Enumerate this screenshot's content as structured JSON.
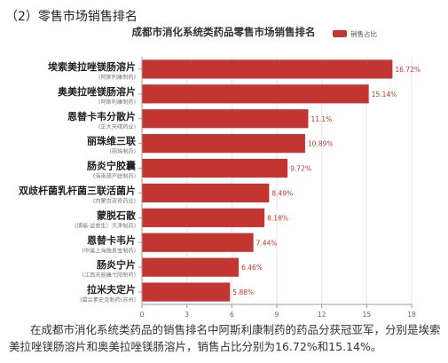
{
  "section": {
    "heading": "（2）零售市场销售排名"
  },
  "caption": "在成都市消化系统类药品的销售排名中阿斯利康制药的药品分获冠亚军，分别是埃索美拉唑镁肠溶片和奥美拉唑镁肠溶片，销售占比分别为16.72%和15.14%。",
  "colors": {
    "bar": "#c23531",
    "grid": "#e6e6e6",
    "axis": "#999999"
  },
  "chart_data": {
    "type": "bar",
    "orientation": "horizontal",
    "title": "成都市消化系统类药品零售市场销售排名",
    "legend": {
      "label": "销售占比",
      "position": "top-right"
    },
    "xlim": [
      0,
      18
    ],
    "xticks": [
      0,
      3,
      6,
      9,
      12,
      15,
      18
    ],
    "grid": true,
    "categories": [
      {
        "name": "埃索美拉唑镁肠溶片",
        "maker": "(阿斯利康制药)"
      },
      {
        "name": "奥美拉唑镁肠溶片",
        "maker": "(阿斯利康制药)"
      },
      {
        "name": "恩替卡韦分散片",
        "maker": "(正大天晴药业)"
      },
      {
        "name": "丽珠维三联",
        "maker": "(丽珠制药)"
      },
      {
        "name": "肠炎宁胶囊",
        "maker": "(海南葫芦娃制药)"
      },
      {
        "name": "双歧杆菌乳杆菌三联活菌片",
        "maker": "(内蒙古双奇药业)"
      },
      {
        "name": "蒙脱石散",
        "maker": "(博福-益普生）天津制药)"
      },
      {
        "name": "恩替卡韦片",
        "maker": "(中美上海施贵宝制药)"
      },
      {
        "name": "肠炎宁片",
        "maker": "(江西天施康弋阳制药)"
      },
      {
        "name": "拉米夫定片",
        "maker": "(葛兰素史克制药(苏州)"
      }
    ],
    "values": [
      16.72,
      15.14,
      11.1,
      10.89,
      9.72,
      8.49,
      8.18,
      7.44,
      6.46,
      5.88
    ],
    "labels": [
      "16.72%",
      "15.14%",
      "11.1%",
      "10.89%",
      "9.72%",
      "8.49%",
      "8.18%",
      "7.44%",
      "6.46%",
      "5.88%"
    ]
  }
}
